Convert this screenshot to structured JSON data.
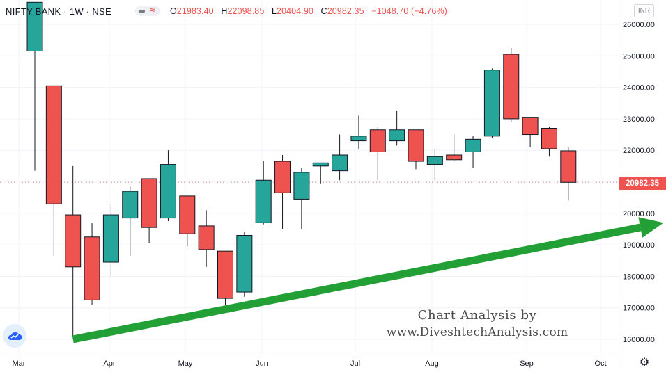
{
  "legend": {
    "symbol": "NIFTY BANK · 1W · NSE",
    "open_label": "O",
    "open": "21983.40",
    "high_label": "H",
    "high": "22098.85",
    "low_label": "L",
    "low": "20404.90",
    "close_label": "C",
    "close": "20982.35",
    "change": "−1048.70 (−4.76%)"
  },
  "currency": "INR",
  "last_price_label": "20982.35",
  "watermark": {
    "line1": "Chart Analysis by",
    "line2": "www.DiveshtechAnalysis.com"
  },
  "colors": {
    "up": "#26a69a",
    "down": "#ef5350",
    "arrow": "#22a035"
  },
  "chart_data": {
    "type": "candlestick",
    "title": "NIFTY BANK · 1W · NSE",
    "x_tick_labels": [
      "Mar",
      "Apr",
      "May",
      "Jun",
      "Jul",
      "Aug",
      "Sep",
      "Oct"
    ],
    "y_tick_labels": [
      "16000.00",
      "17000.00",
      "18000.00",
      "19000.00",
      "20000.00",
      "21000.00",
      "22000.00",
      "23000.00",
      "24000.00",
      "25000.00",
      "26000.00"
    ],
    "ylim": [
      15700,
      26700
    ],
    "grid": true,
    "candles": [
      {
        "week": 1,
        "o": 25150,
        "h": 26700,
        "l": 21350,
        "c": 26700
      },
      {
        "week": 2,
        "o": 24050,
        "h": 24050,
        "l": 18650,
        "c": 20300
      },
      {
        "week": 3,
        "o": 19950,
        "h": 21500,
        "l": 16100,
        "c": 18300
      },
      {
        "week": 4,
        "o": 19250,
        "h": 19700,
        "l": 17100,
        "c": 17250
      },
      {
        "week": 5,
        "o": 18450,
        "h": 20300,
        "l": 17950,
        "c": 19950
      },
      {
        "week": 6,
        "o": 19850,
        "h": 20850,
        "l": 18650,
        "c": 20700
      },
      {
        "week": 7,
        "o": 21100,
        "h": 21100,
        "l": 19050,
        "c": 19550
      },
      {
        "week": 8,
        "o": 19850,
        "h": 22000,
        "l": 19750,
        "c": 21550
      },
      {
        "week": 9,
        "o": 20550,
        "h": 20550,
        "l": 18950,
        "c": 19350
      },
      {
        "week": 10,
        "o": 19600,
        "h": 20100,
        "l": 18300,
        "c": 18850
      },
      {
        "week": 11,
        "o": 18800,
        "h": 18800,
        "l": 17100,
        "c": 17300
      },
      {
        "week": 12,
        "o": 17500,
        "h": 19400,
        "l": 17350,
        "c": 19300
      },
      {
        "week": 13,
        "o": 19700,
        "h": 21650,
        "l": 19650,
        "c": 21050
      },
      {
        "week": 14,
        "o": 21650,
        "h": 21850,
        "l": 19500,
        "c": 20650
      },
      {
        "week": 15,
        "o": 20450,
        "h": 21450,
        "l": 19500,
        "c": 21300
      },
      {
        "week": 16,
        "o": 21500,
        "h": 21600,
        "l": 20950,
        "c": 21600
      },
      {
        "week": 17,
        "o": 21350,
        "h": 22500,
        "l": 21050,
        "c": 21850
      },
      {
        "week": 18,
        "o": 22300,
        "h": 23100,
        "l": 22050,
        "c": 22450
      },
      {
        "week": 19,
        "o": 22650,
        "h": 22750,
        "l": 21050,
        "c": 21950
      },
      {
        "week": 20,
        "o": 22300,
        "h": 23250,
        "l": 22150,
        "c": 22650
      },
      {
        "week": 21,
        "o": 22650,
        "h": 22650,
        "l": 21400,
        "c": 21650
      },
      {
        "week": 22,
        "o": 21550,
        "h": 22050,
        "l": 21050,
        "c": 21800
      },
      {
        "week": 23,
        "o": 21850,
        "h": 22500,
        "l": 21650,
        "c": 21700
      },
      {
        "week": 24,
        "o": 21950,
        "h": 22450,
        "l": 21450,
        "c": 22350
      },
      {
        "week": 25,
        "o": 22450,
        "h": 24600,
        "l": 22400,
        "c": 24550
      },
      {
        "week": 26,
        "o": 25050,
        "h": 25250,
        "l": 22900,
        "c": 23000
      },
      {
        "week": 27,
        "o": 23050,
        "h": 23050,
        "l": 22100,
        "c": 22500
      },
      {
        "week": 28,
        "o": 22700,
        "h": 22750,
        "l": 21800,
        "c": 22050
      },
      {
        "week": 29,
        "o": 21983.4,
        "h": 22098.85,
        "l": 20404.9,
        "c": 20982.35
      }
    ],
    "trendline": {
      "from": {
        "week": 3,
        "price": 16000
      },
      "to": {
        "week": 34,
        "price": 19700
      }
    }
  }
}
